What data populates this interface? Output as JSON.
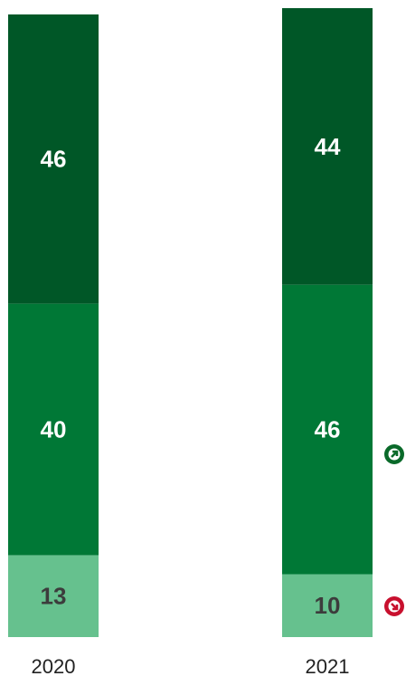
{
  "chart_data": {
    "type": "stacked_bar",
    "categories": [
      "2020",
      "2021"
    ],
    "series": [
      {
        "color": "#66c18e",
        "label_color": "#3c3c3c",
        "values": [
          13,
          10
        ]
      },
      {
        "color": "#007836",
        "label_color": "#ffffff",
        "values": [
          40,
          46
        ]
      },
      {
        "color": "#005727",
        "label_color": "#ffffff",
        "values": [
          46,
          44
        ]
      }
    ],
    "ylim": [
      0,
      100
    ]
  }
}
